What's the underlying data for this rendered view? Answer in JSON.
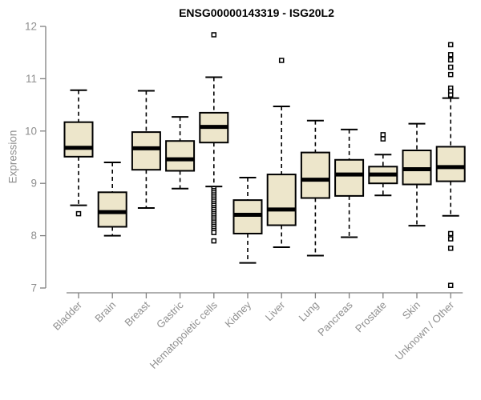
{
  "colors": {
    "background": "#ffffff",
    "box_fill": "#EDE6CB",
    "box_stroke": "#000000",
    "median": "#000000",
    "axis_line": "#808080",
    "axis_text": "#8f8f8f",
    "title": "#000000"
  },
  "chart_data": {
    "type": "boxplot",
    "title": "ENSG00000143319 - ISG20L2",
    "ylabel": "Expression",
    "xlabel": "",
    "ylim": [
      7,
      12
    ],
    "yticks": [
      7,
      8,
      9,
      10,
      11,
      12
    ],
    "grid": false,
    "legend": "none",
    "categories": [
      "Bladder",
      "Brain",
      "Breast",
      "Gastric",
      "Hematopoietic cells",
      "Kidney",
      "Liver",
      "Lung",
      "Pancreas",
      "Prostate",
      "Skin",
      "Unknown / Other"
    ],
    "series": [
      {
        "category": "Bladder",
        "whisker_low": 8.58,
        "q1": 9.51,
        "median": 9.68,
        "q3": 10.17,
        "whisker_high": 10.78,
        "outliers": [
          8.42
        ]
      },
      {
        "category": "Brain",
        "whisker_low": 8.0,
        "q1": 8.17,
        "median": 8.45,
        "q3": 8.83,
        "whisker_high": 9.4,
        "outliers": []
      },
      {
        "category": "Breast",
        "whisker_low": 8.53,
        "q1": 9.26,
        "median": 9.67,
        "q3": 9.98,
        "whisker_high": 10.77,
        "outliers": []
      },
      {
        "category": "Gastric",
        "whisker_low": 8.9,
        "q1": 9.24,
        "median": 9.46,
        "q3": 9.81,
        "whisker_high": 10.27,
        "outliers": []
      },
      {
        "category": "Hematopoietic cells",
        "whisker_low": 8.94,
        "q1": 9.78,
        "median": 10.08,
        "q3": 10.35,
        "whisker_high": 11.03,
        "outliers": [
          11.84,
          8.9,
          8.86,
          8.82,
          8.78,
          8.74,
          8.7,
          8.66,
          8.62,
          8.58,
          8.54,
          8.5,
          8.46,
          8.42,
          8.38,
          8.34,
          8.3,
          8.26,
          8.22,
          8.18,
          8.14,
          8.1,
          8.06,
          7.9
        ]
      },
      {
        "category": "Kidney",
        "whisker_low": 7.48,
        "q1": 8.04,
        "median": 8.4,
        "q3": 8.68,
        "whisker_high": 9.11,
        "outliers": []
      },
      {
        "category": "Liver",
        "whisker_low": 7.78,
        "q1": 8.2,
        "median": 8.5,
        "q3": 9.17,
        "whisker_high": 10.47,
        "outliers": [
          11.35
        ]
      },
      {
        "category": "Lung",
        "whisker_low": 7.62,
        "q1": 8.72,
        "median": 9.07,
        "q3": 9.59,
        "whisker_high": 10.2,
        "outliers": []
      },
      {
        "category": "Pancreas",
        "whisker_low": 7.97,
        "q1": 8.76,
        "median": 9.17,
        "q3": 9.45,
        "whisker_high": 10.03,
        "outliers": []
      },
      {
        "category": "Prostate",
        "whisker_low": 8.77,
        "q1": 9.0,
        "median": 9.17,
        "q3": 9.32,
        "whisker_high": 9.55,
        "outliers": [
          9.93,
          9.85
        ]
      },
      {
        "category": "Skin",
        "whisker_low": 8.19,
        "q1": 8.98,
        "median": 9.27,
        "q3": 9.63,
        "whisker_high": 10.14,
        "outliers": []
      },
      {
        "category": "Unknown / Other",
        "whisker_low": 8.38,
        "q1": 9.04,
        "median": 9.31,
        "q3": 9.7,
        "whisker_high": 10.63,
        "outliers": [
          11.65,
          11.46,
          11.36,
          11.22,
          11.08,
          10.82,
          10.76,
          10.69,
          8.04,
          7.94,
          7.76,
          7.05
        ]
      }
    ]
  }
}
